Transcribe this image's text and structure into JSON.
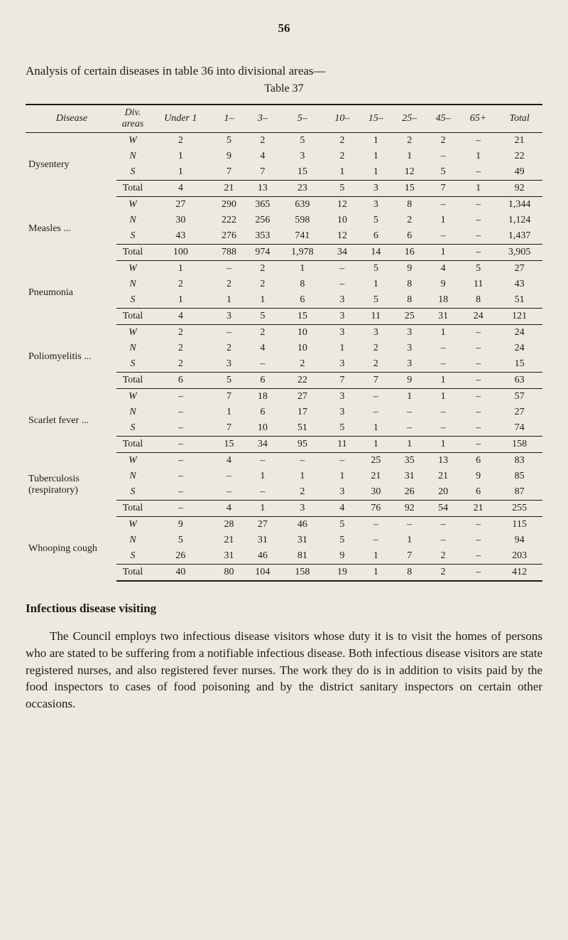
{
  "page_number": "56",
  "title": "Analysis of certain diseases in table 36 into divisional areas—",
  "table_caption": "Table 37",
  "colors": {
    "background": "#ede9de",
    "text": "#1a1a1a",
    "rule": "#1a1a1a"
  },
  "table": {
    "header": [
      "Disease",
      "Div. areas",
      "Under 1",
      "1–",
      "3–",
      "5–",
      "10–",
      "15–",
      "25–",
      "45–",
      "65+",
      "Total"
    ],
    "diseases": [
      {
        "name": "Dysentery",
        "rows": [
          {
            "area": "W",
            "vals": [
              "2",
              "5",
              "2",
              "5",
              "2",
              "1",
              "2",
              "2",
              "–",
              "21"
            ]
          },
          {
            "area": "N",
            "vals": [
              "1",
              "9",
              "4",
              "3",
              "2",
              "1",
              "1",
              "–",
              "1",
              "22"
            ]
          },
          {
            "area": "S",
            "vals": [
              "1",
              "7",
              "7",
              "15",
              "1",
              "1",
              "12",
              "5",
              "–",
              "49"
            ]
          }
        ],
        "total": [
          "4",
          "21",
          "13",
          "23",
          "5",
          "3",
          "15",
          "7",
          "1",
          "92"
        ]
      },
      {
        "name": "Measles ...",
        "rows": [
          {
            "area": "W",
            "vals": [
              "27",
              "290",
              "365",
              "639",
              "12",
              "3",
              "8",
              "–",
              "–",
              "1,344"
            ]
          },
          {
            "area": "N",
            "vals": [
              "30",
              "222",
              "256",
              "598",
              "10",
              "5",
              "2",
              "1",
              "–",
              "1,124"
            ]
          },
          {
            "area": "S",
            "vals": [
              "43",
              "276",
              "353",
              "741",
              "12",
              "6",
              "6",
              "–",
              "–",
              "1,437"
            ]
          }
        ],
        "total": [
          "100",
          "788",
          "974",
          "1,978",
          "34",
          "14",
          "16",
          "1",
          "–",
          "3,905"
        ]
      },
      {
        "name": "Pneumonia",
        "rows": [
          {
            "area": "W",
            "vals": [
              "1",
              "–",
              "2",
              "1",
              "–",
              "5",
              "9",
              "4",
              "5",
              "27"
            ]
          },
          {
            "area": "N",
            "vals": [
              "2",
              "2",
              "2",
              "8",
              "–",
              "1",
              "8",
              "9",
              "11",
              "43"
            ]
          },
          {
            "area": "S",
            "vals": [
              "1",
              "1",
              "1",
              "6",
              "3",
              "5",
              "8",
              "18",
              "8",
              "51"
            ]
          }
        ],
        "total": [
          "4",
          "3",
          "5",
          "15",
          "3",
          "11",
          "25",
          "31",
          "24",
          "121"
        ]
      },
      {
        "name": "Poliomyelitis ...",
        "rows": [
          {
            "area": "W",
            "vals": [
              "2",
              "–",
              "2",
              "10",
              "3",
              "3",
              "3",
              "1",
              "–",
              "24"
            ]
          },
          {
            "area": "N",
            "vals": [
              "2",
              "2",
              "4",
              "10",
              "1",
              "2",
              "3",
              "–",
              "–",
              "24"
            ]
          },
          {
            "area": "S",
            "vals": [
              "2",
              "3",
              "–",
              "2",
              "3",
              "2",
              "3",
              "–",
              "–",
              "15"
            ]
          }
        ],
        "total": [
          "6",
          "5",
          "6",
          "22",
          "7",
          "7",
          "9",
          "1",
          "–",
          "63"
        ]
      },
      {
        "name": "Scarlet fever ...",
        "rows": [
          {
            "area": "W",
            "vals": [
              "–",
              "7",
              "18",
              "27",
              "3",
              "–",
              "1",
              "1",
              "–",
              "57"
            ]
          },
          {
            "area": "N",
            "vals": [
              "–",
              "1",
              "6",
              "17",
              "3",
              "–",
              "–",
              "–",
              "–",
              "27"
            ]
          },
          {
            "area": "S",
            "vals": [
              "–",
              "7",
              "10",
              "51",
              "5",
              "1",
              "–",
              "–",
              "–",
              "74"
            ]
          }
        ],
        "total": [
          "–",
          "15",
          "34",
          "95",
          "11",
          "1",
          "1",
          "1",
          "–",
          "158"
        ]
      },
      {
        "name": "Tuberculosis (respiratory)",
        "rows": [
          {
            "area": "W",
            "vals": [
              "–",
              "4",
              "–",
              "–",
              "–",
              "25",
              "35",
              "13",
              "6",
              "83"
            ]
          },
          {
            "area": "N",
            "vals": [
              "–",
              "–",
              "1",
              "1",
              "1",
              "21",
              "31",
              "21",
              "9",
              "85"
            ]
          },
          {
            "area": "S",
            "vals": [
              "–",
              "–",
              "–",
              "2",
              "3",
              "30",
              "26",
              "20",
              "6",
              "87"
            ]
          }
        ],
        "total": [
          "–",
          "4",
          "1",
          "3",
          "4",
          "76",
          "92",
          "54",
          "21",
          "255"
        ]
      },
      {
        "name": "Whooping cough",
        "rows": [
          {
            "area": "W",
            "vals": [
              "9",
              "28",
              "27",
              "46",
              "5",
              "–",
              "–",
              "–",
              "–",
              "115"
            ]
          },
          {
            "area": "N",
            "vals": [
              "5",
              "21",
              "31",
              "31",
              "5",
              "–",
              "1",
              "–",
              "–",
              "94"
            ]
          },
          {
            "area": "S",
            "vals": [
              "26",
              "31",
              "46",
              "81",
              "9",
              "1",
              "7",
              "2",
              "–",
              "203"
            ]
          }
        ],
        "total": [
          "40",
          "80",
          "104",
          "158",
          "19",
          "1",
          "8",
          "2",
          "–",
          "412"
        ]
      }
    ]
  },
  "section_heading": "Infectious disease visiting",
  "paragraph": "The Council employs two infectious disease visitors whose duty it is to visit the homes of persons who are stated to be suffering from a notifiable infectious disease. Both infectious disease visitors are state registered nurses, and also registered fever nurses. The work they do is in addition to visits paid by the food inspectors to cases of food poisoning and by the district sanitary inspectors on certain other occasions."
}
